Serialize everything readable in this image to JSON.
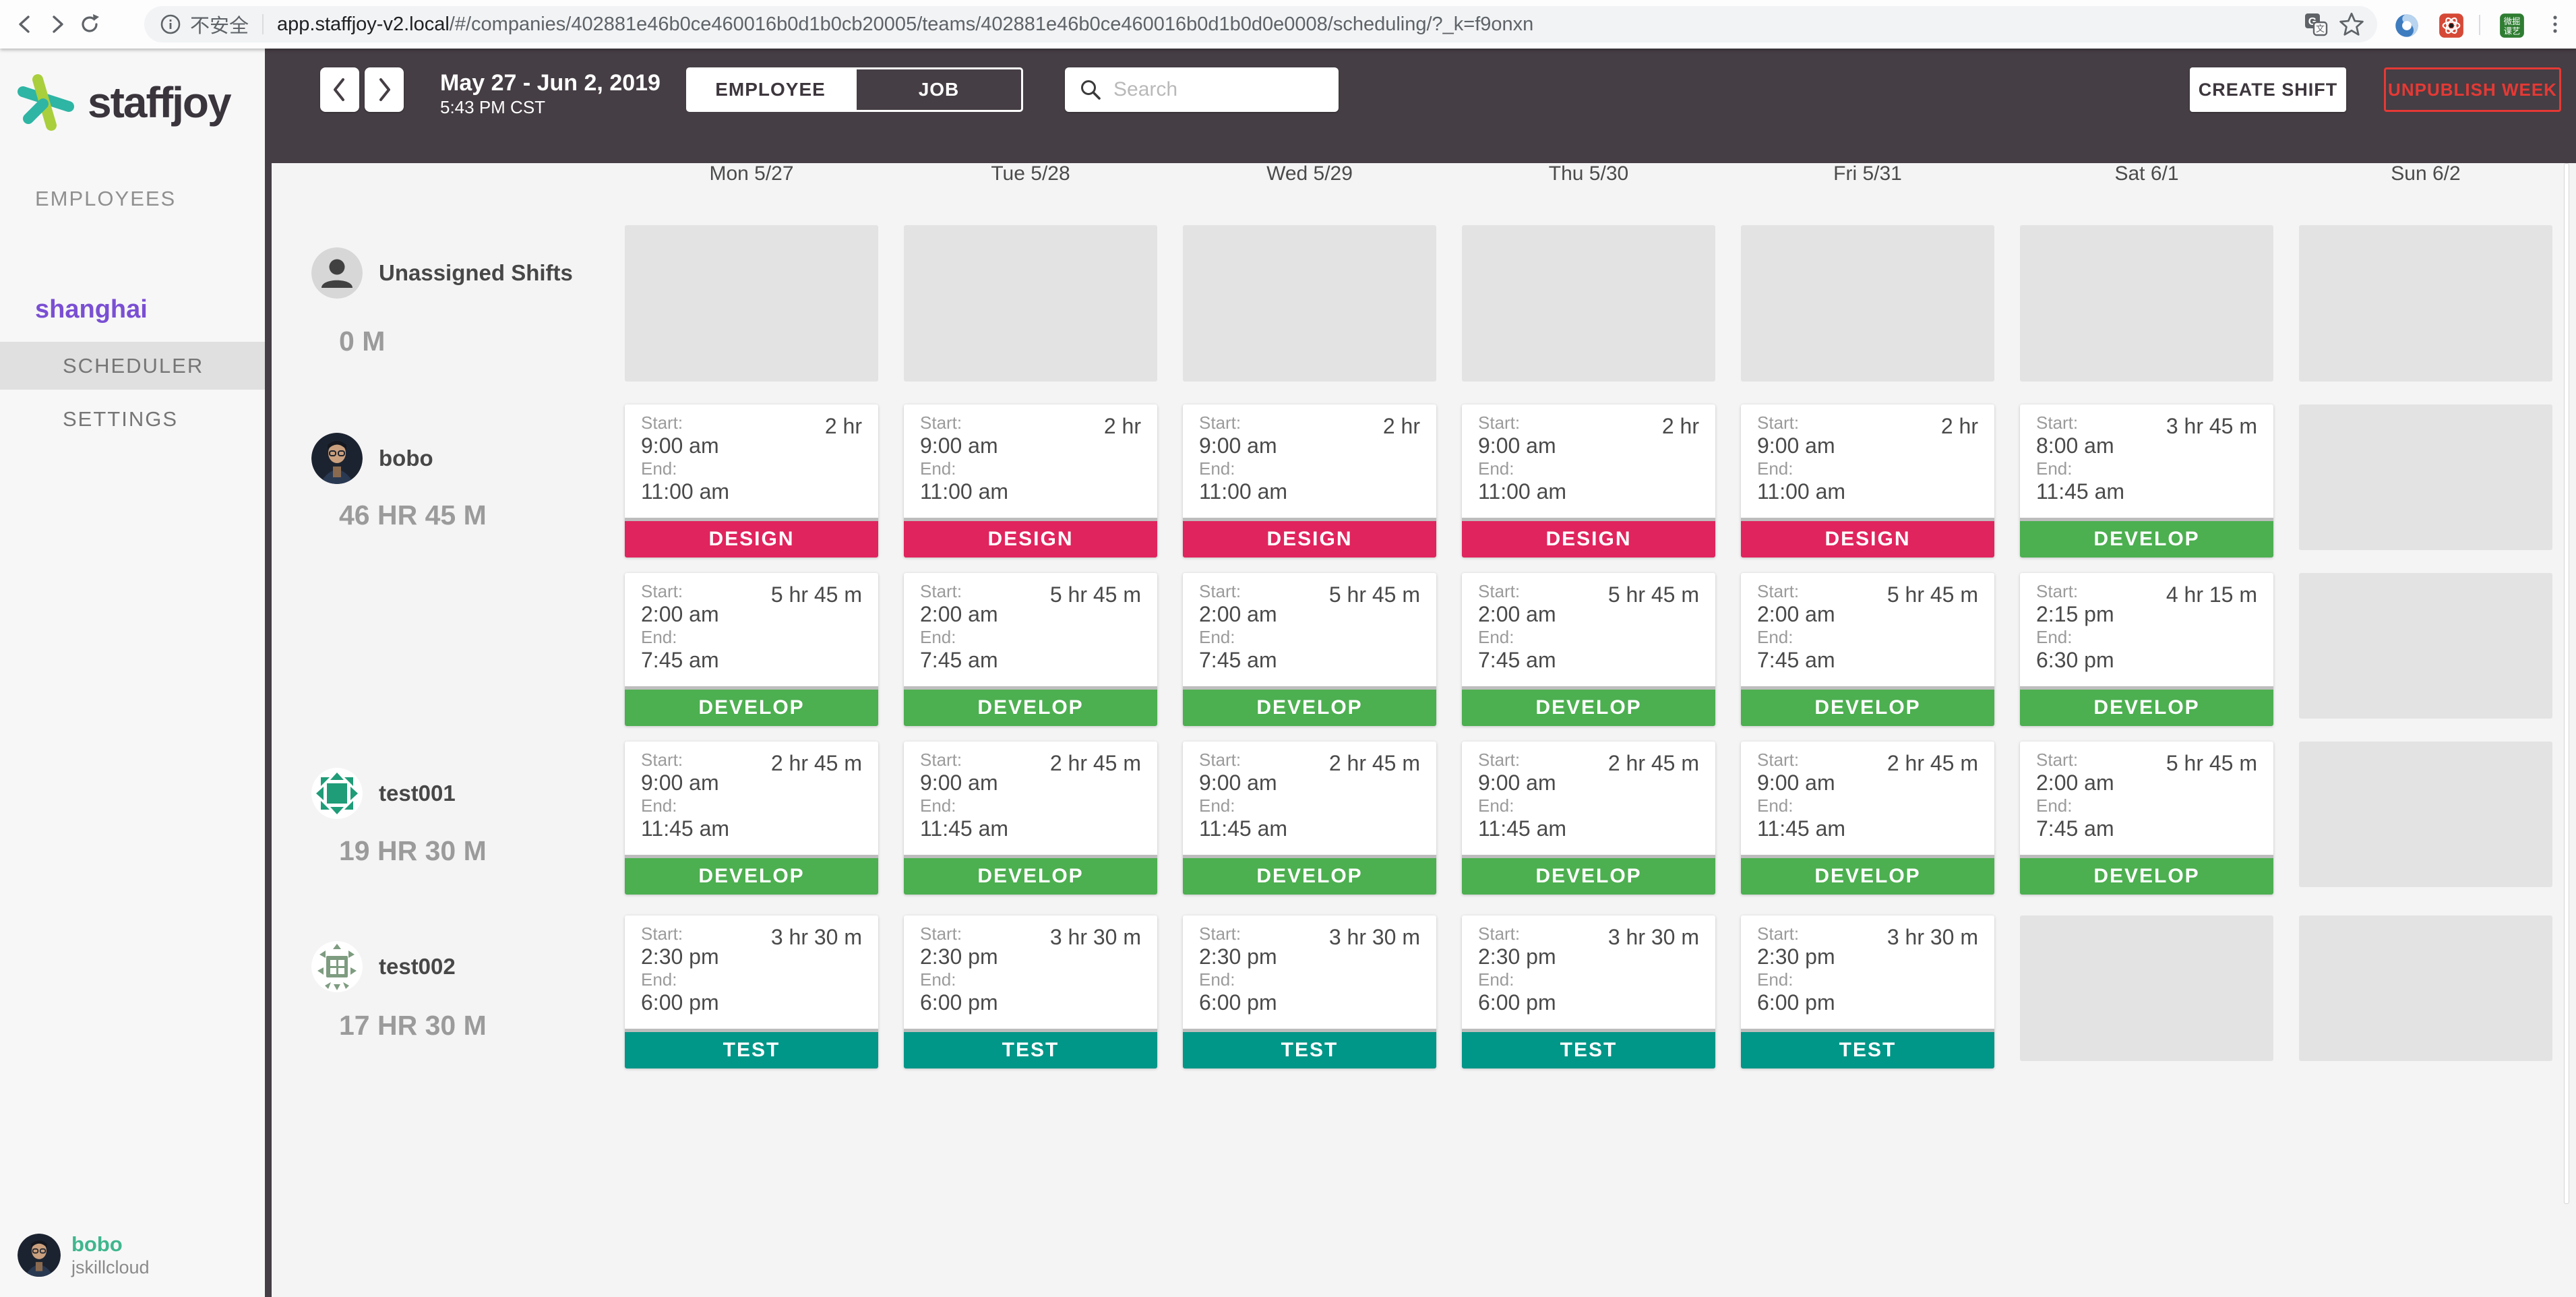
{
  "browser": {
    "security_label": "不安全",
    "url_host": "app.staffjoy-v2.local",
    "url_path": "/#/companies/402881e46b0ce460016b0d1b0cb20005/teams/402881e46b0ce460016b0d1b0d0e0008/scheduling/?_k=f9onxn",
    "extension_green_line1": "微掘",
    "extension_green_line2": "课艺"
  },
  "sidebar": {
    "brand": "staffjoy",
    "nav_employees": "EMPLOYEES",
    "team_name": "shanghai",
    "nav_scheduler": "SCHEDULER",
    "nav_settings": "SETTINGS",
    "user": {
      "name": "bobo",
      "company": "jskillcloud"
    }
  },
  "header": {
    "date_range": "May 27 - Jun 2, 2019",
    "timestamp": "5:43 PM CST",
    "toggle_employee": "EMPLOYEE",
    "toggle_job": "JOB",
    "search_placeholder": "Search",
    "create_shift": "CREATE SHIFT",
    "unpublish_week": "UNPUBLISH WEEK"
  },
  "colors": {
    "header_bar": "#453e44",
    "team_accent": "#7a4fd3",
    "user_name_teal": "#3fb68e",
    "unpublish_red": "#e53935",
    "brand_teal": "#2eb5a4",
    "brand_green": "#a9cf3c"
  },
  "schedule": {
    "days": [
      "Mon 5/27",
      "Tue 5/28",
      "Wed 5/29",
      "Thu 5/30",
      "Fri 5/31",
      "Sat 6/1",
      "Sun 6/2"
    ],
    "start_label": "Start:",
    "end_label": "End:",
    "job_colors": {
      "DESIGN": "#e0245e",
      "DEVELOP": "#4caf50",
      "TEST": "#009688"
    },
    "rows": [
      {
        "name": "Unassigned Shifts",
        "hours": "0 M",
        "avatar": "person-placeholder",
        "lines": [
          {
            "cells": [
              {
                "kind": "empty"
              },
              {
                "kind": "empty"
              },
              {
                "kind": "empty"
              },
              {
                "kind": "empty"
              },
              {
                "kind": "empty"
              },
              {
                "kind": "empty"
              },
              {
                "kind": "empty"
              }
            ]
          }
        ]
      },
      {
        "name": "bobo",
        "hours": "46 HR 45 M",
        "avatar": "photo",
        "lines": [
          {
            "cells": [
              {
                "kind": "shift",
                "start": "9:00 am",
                "end": "11:00 am",
                "duration": "2 hr",
                "job": "DESIGN"
              },
              {
                "kind": "shift",
                "start": "9:00 am",
                "end": "11:00 am",
                "duration": "2 hr",
                "job": "DESIGN"
              },
              {
                "kind": "shift",
                "start": "9:00 am",
                "end": "11:00 am",
                "duration": "2 hr",
                "job": "DESIGN"
              },
              {
                "kind": "shift",
                "start": "9:00 am",
                "end": "11:00 am",
                "duration": "2 hr",
                "job": "DESIGN"
              },
              {
                "kind": "shift",
                "start": "9:00 am",
                "end": "11:00 am",
                "duration": "2 hr",
                "job": "DESIGN"
              },
              {
                "kind": "shift",
                "start": "8:00 am",
                "end": "11:45 am",
                "duration": "3 hr 45 m",
                "job": "DEVELOP"
              },
              {
                "kind": "empty"
              }
            ]
          },
          {
            "cells": [
              {
                "kind": "shift",
                "start": "2:00 am",
                "end": "7:45 am",
                "duration": "5 hr 45 m",
                "job": "DEVELOP"
              },
              {
                "kind": "shift",
                "start": "2:00 am",
                "end": "7:45 am",
                "duration": "5 hr 45 m",
                "job": "DEVELOP"
              },
              {
                "kind": "shift",
                "start": "2:00 am",
                "end": "7:45 am",
                "duration": "5 hr 45 m",
                "job": "DEVELOP"
              },
              {
                "kind": "shift",
                "start": "2:00 am",
                "end": "7:45 am",
                "duration": "5 hr 45 m",
                "job": "DEVELOP"
              },
              {
                "kind": "shift",
                "start": "2:00 am",
                "end": "7:45 am",
                "duration": "5 hr 45 m",
                "job": "DEVELOP"
              },
              {
                "kind": "shift",
                "start": "2:15 pm",
                "end": "6:30 pm",
                "duration": "4 hr 15 m",
                "job": "DEVELOP"
              },
              {
                "kind": "empty"
              }
            ]
          }
        ]
      },
      {
        "name": "test001",
        "hours": "19 HR 30 M",
        "avatar": "identicon-teal",
        "lines": [
          {
            "cells": [
              {
                "kind": "shift",
                "start": "9:00 am",
                "end": "11:45 am",
                "duration": "2 hr 45 m",
                "job": "DEVELOP"
              },
              {
                "kind": "shift",
                "start": "9:00 am",
                "end": "11:45 am",
                "duration": "2 hr 45 m",
                "job": "DEVELOP"
              },
              {
                "kind": "shift",
                "start": "9:00 am",
                "end": "11:45 am",
                "duration": "2 hr 45 m",
                "job": "DEVELOP"
              },
              {
                "kind": "shift",
                "start": "9:00 am",
                "end": "11:45 am",
                "duration": "2 hr 45 m",
                "job": "DEVELOP"
              },
              {
                "kind": "shift",
                "start": "9:00 am",
                "end": "11:45 am",
                "duration": "2 hr 45 m",
                "job": "DEVELOP"
              },
              {
                "kind": "shift",
                "start": "2:00 am",
                "end": "7:45 am",
                "duration": "5 hr 45 m",
                "job": "DEVELOP"
              },
              {
                "kind": "empty"
              }
            ]
          }
        ]
      },
      {
        "name": "test002",
        "hours": "17 HR 30 M",
        "avatar": "identicon-sage",
        "lines": [
          {
            "cells": [
              {
                "kind": "shift",
                "start": "2:30 pm",
                "end": "6:00 pm",
                "duration": "3 hr 30 m",
                "job": "TEST"
              },
              {
                "kind": "shift",
                "start": "2:30 pm",
                "end": "6:00 pm",
                "duration": "3 hr 30 m",
                "job": "TEST"
              },
              {
                "kind": "shift",
                "start": "2:30 pm",
                "end": "6:00 pm",
                "duration": "3 hr 30 m",
                "job": "TEST"
              },
              {
                "kind": "shift",
                "start": "2:30 pm",
                "end": "6:00 pm",
                "duration": "3 hr 30 m",
                "job": "TEST"
              },
              {
                "kind": "shift",
                "start": "2:30 pm",
                "end": "6:00 pm",
                "duration": "3 hr 30 m",
                "job": "TEST"
              },
              {
                "kind": "empty"
              },
              {
                "kind": "empty"
              }
            ]
          }
        ]
      }
    ]
  }
}
